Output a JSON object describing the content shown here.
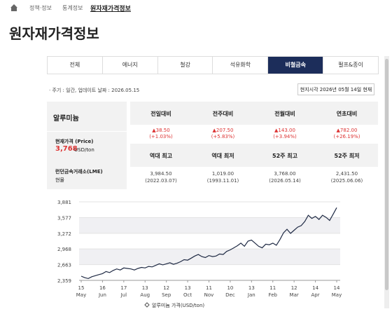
{
  "breadcrumb": [
    "정책·정보",
    "통계정보",
    "원자재가격정보"
  ],
  "title": "원자재가격정보",
  "tabs": {
    "items": [
      "전체",
      "에너지",
      "철강",
      "석유화학",
      "비철금속",
      "펄프&종이"
    ],
    "active": 4
  },
  "info": "· 주기 : 일간, 업데이트 날짜 : 2026.05.15",
  "local_time": "현지시각 2026년 05월 14일 현재",
  "table": {
    "name": "알루미늄",
    "price_label": "현재가격 (Price)",
    "price": "3,768",
    "unit": "USD/ton",
    "exchange": "런던금속거래소(LME)",
    "kind": "현물",
    "change_headers": [
      "전일대비",
      "전주대비",
      "전월대비",
      "연초대비"
    ],
    "changes": [
      [
        "▲38.50",
        "(+1.03%)"
      ],
      [
        "▲207.50",
        "(+5.83%)"
      ],
      [
        "▲143.00",
        "(+3.94%)"
      ],
      [
        "▲782.00",
        "(+26.19%)"
      ]
    ],
    "record_headers": [
      "역대 최고",
      "역대 최저",
      "52주 최고",
      "52주 최저"
    ],
    "records": [
      [
        "3,984.50",
        "(2022.03.07)"
      ],
      [
        "1,019.00",
        "(1993.11.01)"
      ],
      [
        "3,768.00",
        "(2026.05.14)"
      ],
      [
        "2,431.50",
        "(2025.06.06)"
      ]
    ]
  },
  "chart_data": {
    "type": "line",
    "series": [
      {
        "name": "알루미늄 가격(USD/ton)",
        "color": "#1f2a44",
        "values": [
          2440,
          2410,
          2395,
          2430,
          2450,
          2470,
          2490,
          2530,
          2510,
          2550,
          2580,
          2560,
          2600,
          2590,
          2580,
          2560,
          2590,
          2610,
          2600,
          2630,
          2620,
          2650,
          2680,
          2660,
          2680,
          2700,
          2670,
          2690,
          2720,
          2760,
          2750,
          2790,
          2830,
          2860,
          2820,
          2800,
          2840,
          2820,
          2830,
          2870,
          2860,
          2920,
          2950,
          2990,
          3030,
          3080,
          3020,
          3120,
          3140,
          3080,
          3020,
          2990,
          3060,
          3050,
          3080,
          3040,
          3150,
          3280,
          3350,
          3270,
          3330,
          3390,
          3420,
          3500,
          3620,
          3560,
          3600,
          3540,
          3620,
          3580,
          3520,
          3640,
          3768
        ]
      }
    ],
    "ylim": [
      2359,
      3881
    ],
    "yticks": [
      {
        "value": 2359,
        "label": "2,359"
      },
      {
        "value": 2663,
        "label": "2,663"
      },
      {
        "value": 2968,
        "label": "2,968"
      },
      {
        "value": 3272,
        "label": "3,272"
      },
      {
        "value": 3577,
        "label": "3,577"
      },
      {
        "value": 3881,
        "label": "3,881"
      }
    ],
    "xticks": [
      {
        "value": 0,
        "label": [
          "15",
          "May"
        ]
      },
      {
        "value": 6,
        "label": [
          "16",
          "Jun"
        ]
      },
      {
        "value": 12,
        "label": [
          "17",
          "Jul"
        ]
      },
      {
        "value": 18,
        "label": [
          "13",
          "Aug"
        ]
      },
      {
        "value": 24,
        "label": [
          "12",
          "Sep"
        ]
      },
      {
        "value": 30,
        "label": [
          "13",
          "Oct"
        ]
      },
      {
        "value": 36,
        "label": [
          "11",
          "Nov"
        ]
      },
      {
        "value": 42,
        "label": [
          "10",
          "Dec"
        ]
      },
      {
        "value": 48,
        "label": [
          "13",
          "Jan"
        ]
      },
      {
        "value": 54,
        "label": [
          "11",
          "Feb"
        ]
      },
      {
        "value": 60,
        "label": [
          "12",
          "Mar"
        ]
      },
      {
        "value": 66,
        "label": [
          "14",
          "Apr"
        ]
      },
      {
        "value": 72,
        "label": [
          "14",
          "May"
        ]
      }
    ],
    "xlim": [
      0,
      72
    ]
  }
}
